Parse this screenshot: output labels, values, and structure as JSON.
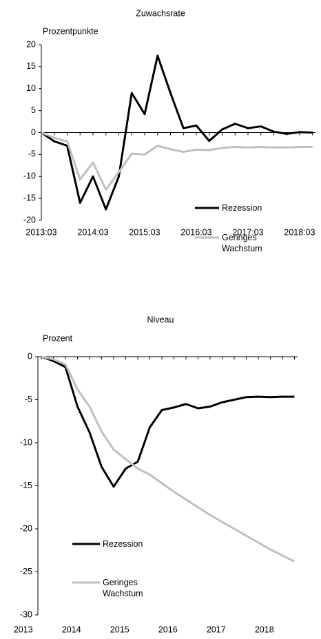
{
  "chart_data": [
    {
      "type": "line",
      "title": "Zuwachsrate",
      "ylabel": "Prozentpunkte",
      "categories": [
        "2013:03",
        null,
        null,
        null,
        "2014:03",
        null,
        null,
        null,
        "2015:03",
        null,
        null,
        null,
        "2016:03",
        null,
        null,
        null,
        "2017:03",
        null,
        null,
        null,
        "2018:03",
        null
      ],
      "series": [
        {
          "name": "Rezession",
          "color": "#000000",
          "values": [
            0,
            -2,
            -3,
            -16,
            -10,
            -17.5,
            -10,
            9,
            4.2,
            17.5,
            9,
            1,
            1.6,
            -1.9,
            0.7,
            2,
            1,
            1.4,
            0.2,
            -0.3,
            0.1,
            0
          ]
        },
        {
          "name": "Geringes Wachstum",
          "color": "#bfbfbf",
          "values": [
            0,
            -1.2,
            -2,
            -10.7,
            -6.8,
            -13,
            -9,
            -4.8,
            -5,
            -3,
            -3.8,
            -4.4,
            -3.9,
            -4,
            -3.5,
            -3.3,
            -3.4,
            -3.3,
            -3.4,
            -3.4,
            -3.3,
            -3.3
          ]
        }
      ],
      "ylim": [
        -20,
        20
      ],
      "yticks": [
        -20,
        -15,
        -10,
        -5,
        0,
        5,
        10,
        15,
        20
      ]
    },
    {
      "type": "line",
      "title": "Niveau",
      "ylabel": "Prozent",
      "categories": [
        null,
        null,
        null,
        null,
        null,
        null,
        null,
        null,
        null,
        null,
        null,
        null,
        null,
        null,
        null,
        null,
        null,
        null,
        null,
        null,
        null,
        null
      ],
      "xticks": [
        "2013",
        "2014",
        "2015",
        "2016",
        "2017",
        "2018"
      ],
      "series": [
        {
          "name": "Rezession",
          "color": "#000000",
          "values": [
            0,
            -0.5,
            -1.2,
            -5.8,
            -8.8,
            -12.8,
            -15.1,
            -13,
            -12.2,
            -8.2,
            -6.2,
            -5.9,
            -5.5,
            -6,
            -5.8,
            -5.3,
            -5,
            -4.7,
            -4.65,
            -4.7,
            -4.65,
            -4.65
          ]
        },
        {
          "name": "Geringes Wachstum",
          "color": "#bfbfbf",
          "values": [
            0,
            -0.3,
            -0.9,
            -3.8,
            -5.8,
            -8.7,
            -10.8,
            -11.9,
            -13,
            -13.7,
            -14.7,
            -15.7,
            -16.6,
            -17.5,
            -18.4,
            -19.2,
            -20,
            -20.8,
            -21.6,
            -22.4,
            -23.1,
            -23.8
          ]
        }
      ],
      "ylim": [
        -30,
        0
      ],
      "yticks": [
        -30,
        -25,
        -20,
        -15,
        -10,
        -5,
        0
      ]
    }
  ]
}
